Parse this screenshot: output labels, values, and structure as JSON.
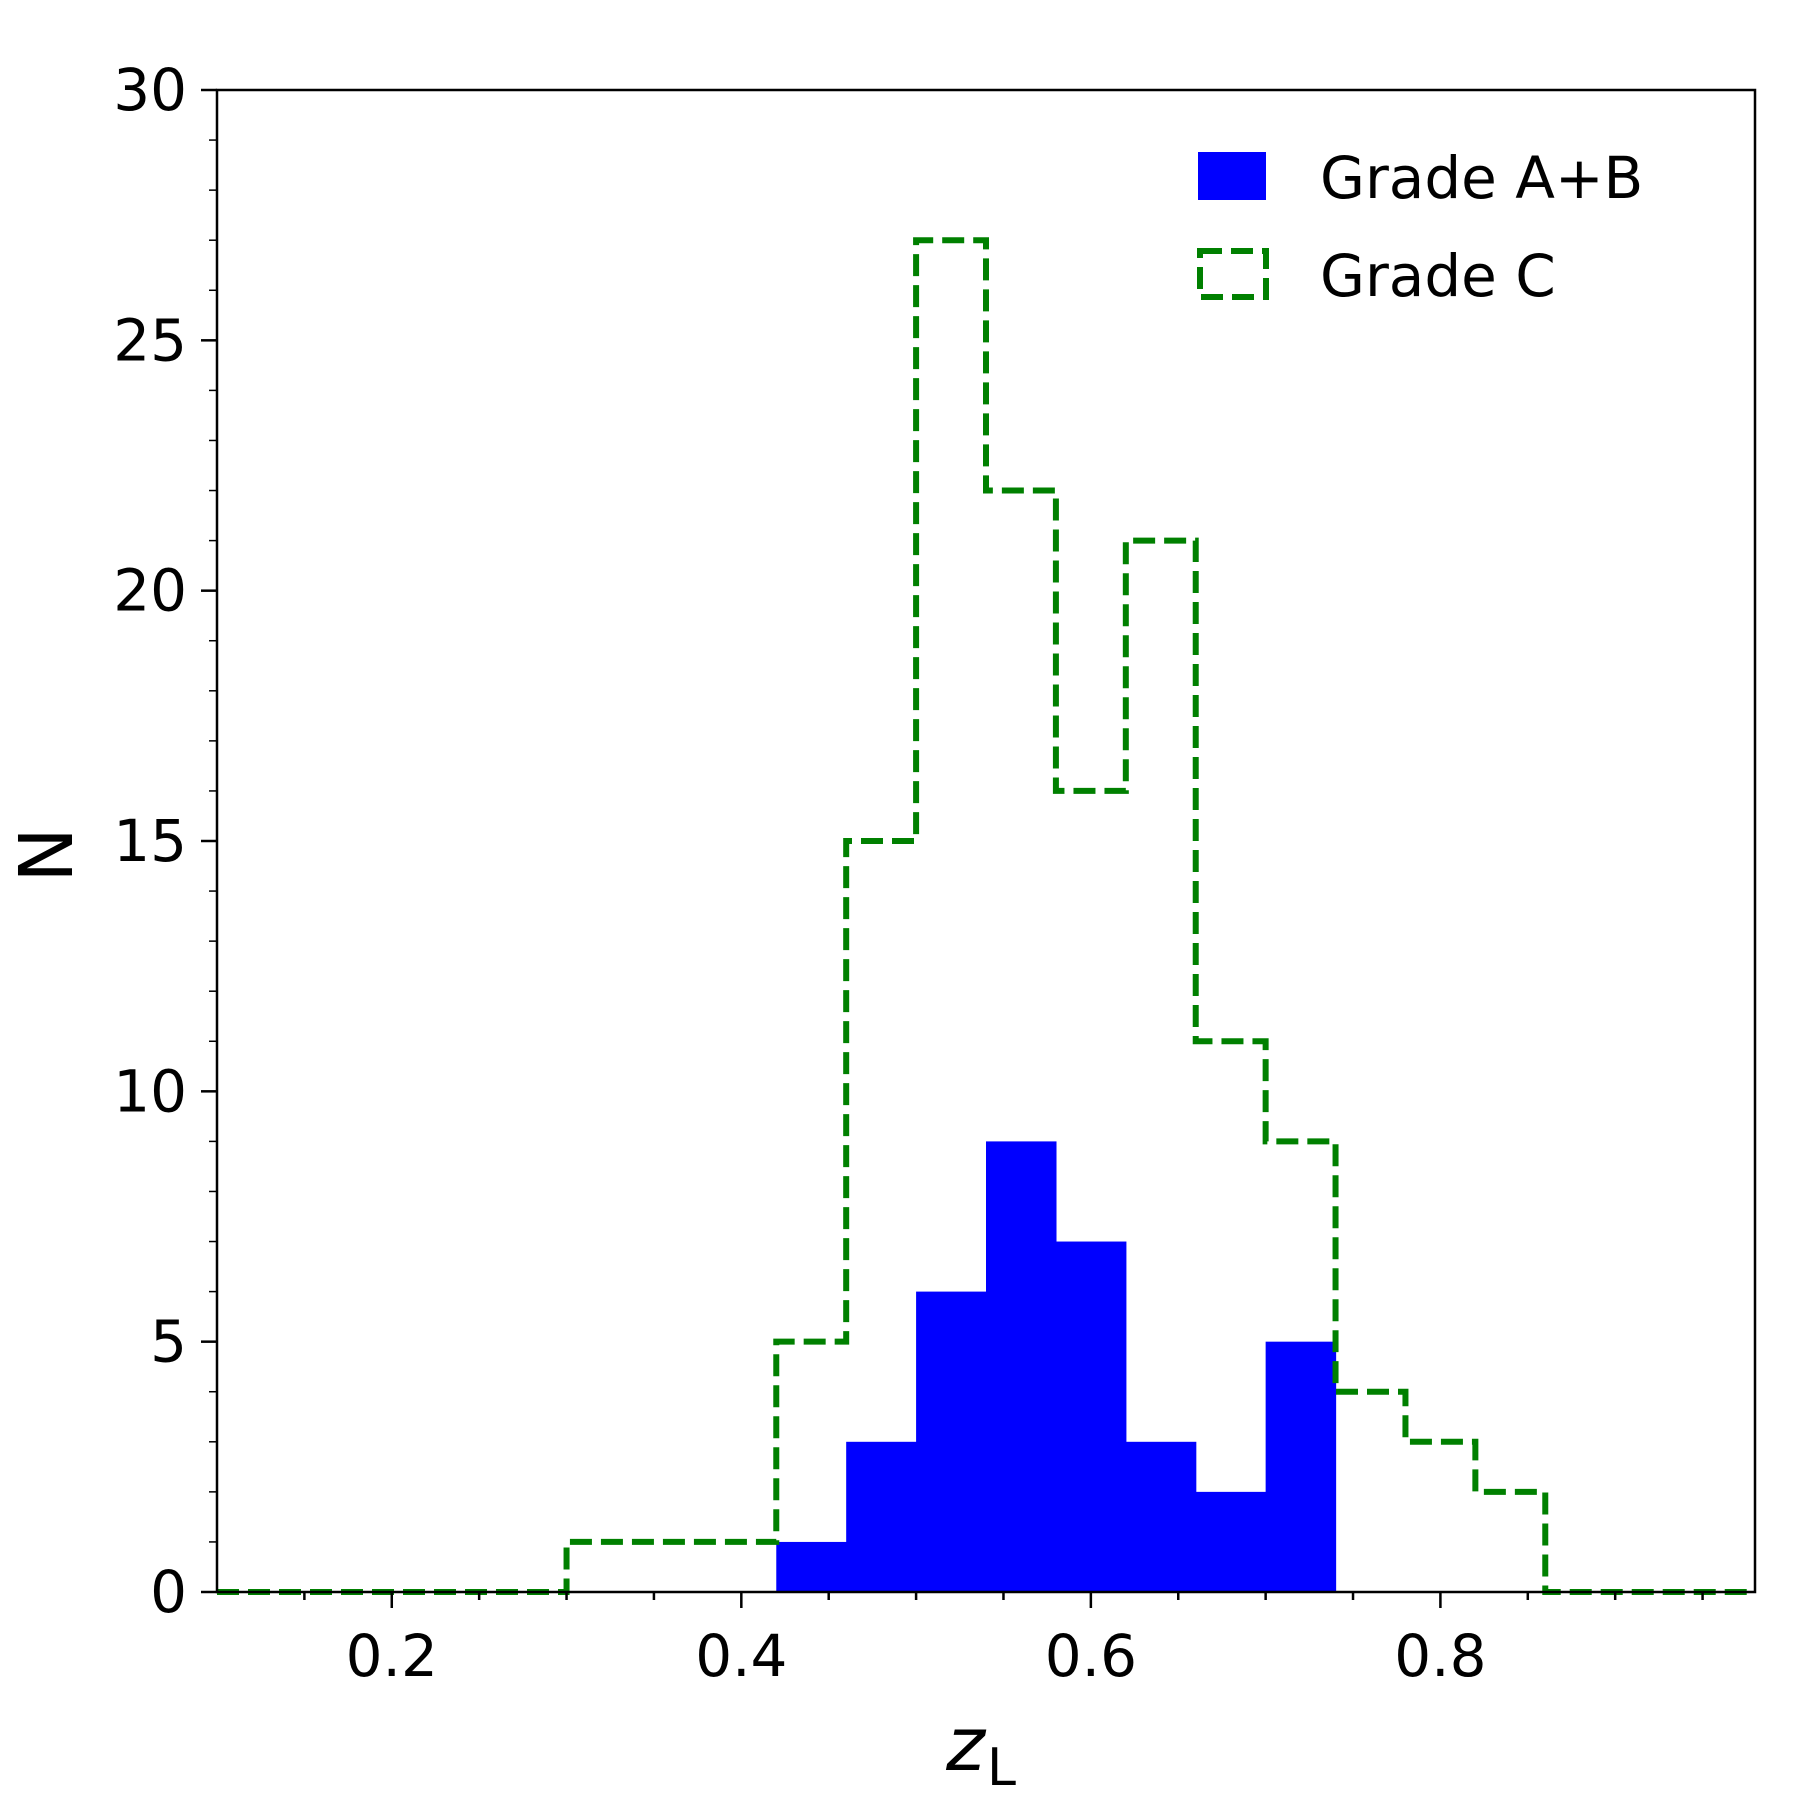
{
  "chart_data": {
    "type": "bar",
    "subtype": "histogram",
    "xlabel": "z",
    "xlabel_subscript": "L",
    "ylabel": "N",
    "xlim": [
      0.1,
      0.98
    ],
    "ylim": [
      0,
      30
    ],
    "xticks": [
      0.2,
      0.4,
      0.6,
      0.8
    ],
    "xtick_labels": [
      "0.2",
      "0.4",
      "0.6",
      "0.8"
    ],
    "yticks": [
      0,
      5,
      10,
      15,
      20,
      25,
      30
    ],
    "ytick_labels": [
      "0",
      "5",
      "10",
      "15",
      "20",
      "25",
      "30"
    ],
    "grid": false,
    "legend_position": "top-right",
    "series": [
      {
        "name": "Grade A+B",
        "style": "filled",
        "color": "#0000ff",
        "bin_edges": [
          0.42,
          0.46,
          0.5,
          0.54,
          0.58,
          0.62,
          0.66,
          0.7,
          0.74
        ],
        "counts": [
          1,
          3,
          6,
          9,
          7,
          3,
          2,
          5
        ]
      },
      {
        "name": "Grade C",
        "style": "dashed-step",
        "color": "#008000",
        "bin_edges": [
          0.1,
          0.14,
          0.18,
          0.22,
          0.26,
          0.3,
          0.34,
          0.38,
          0.42,
          0.46,
          0.5,
          0.54,
          0.58,
          0.62,
          0.66,
          0.7,
          0.74,
          0.78,
          0.82,
          0.86,
          0.9,
          0.94,
          0.98
        ],
        "counts": [
          0,
          0,
          0,
          0,
          0,
          1,
          1,
          1,
          5,
          15,
          27,
          22,
          16,
          21,
          11,
          9,
          4,
          3,
          2,
          0,
          0,
          0
        ]
      }
    ]
  }
}
